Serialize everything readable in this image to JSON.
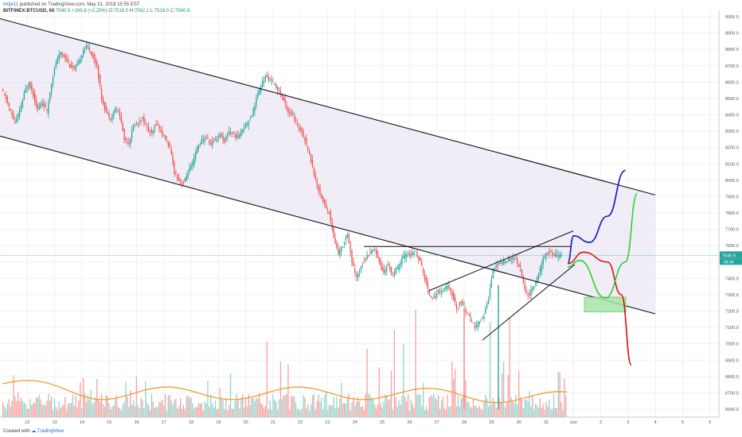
{
  "header": {
    "author": "lmtje11",
    "published": "published on TradingView.com, May 31, 2018 15:55 EST",
    "symbol": "BITFINEX:BTCUSD, 60",
    "last": "7540.9",
    "change": "+165.8 (+2.25%)",
    "o_label": "O:",
    "o": "7518.0",
    "h_label": "H:",
    "h": "7562.1",
    "l_label": "L:",
    "l": "7518.0",
    "c_label": "C:",
    "c": "7540.9"
  },
  "footer": {
    "created_with": "Created with",
    "brand": "TradingView"
  },
  "colors": {
    "up": "#26a69a",
    "down": "#ef5350",
    "channel_fill": "#ece9f5",
    "ma": "#f39c33",
    "blue_path": "#1111cc",
    "red_path": "#dd1111",
    "green_path": "#33cc33",
    "target_box": "#a8e6a8",
    "price_line": "#26a69a"
  },
  "chart_data": {
    "type": "candlestick",
    "y_ticks": [
      "9000.0",
      "8900.0",
      "8800.0",
      "8700.0",
      "8600.0",
      "8500.0",
      "8400.0",
      "8300.0",
      "8200.0",
      "8100.0",
      "8000.0",
      "7900.0",
      "7800.0",
      "7700.0",
      "7600.0",
      "7500.0",
      "7400.0",
      "7300.0",
      "7200.0",
      "7100.0",
      "7000.0",
      "6900.0",
      "6800.0",
      "6700.0",
      "6600.0"
    ],
    "x_ticks": [
      "12",
      "13",
      "14",
      "15",
      "16",
      "17",
      "18",
      "19",
      "20",
      "21",
      "22",
      "23",
      "24",
      "25",
      "26",
      "27",
      "28",
      "29",
      "30",
      "31",
      "Jun",
      "2",
      "3",
      "4",
      "5",
      "6"
    ],
    "price_label": "7540.9",
    "price_label2": "04:44",
    "close_path": [
      8550,
      8500,
      8420,
      8350,
      8420,
      8530,
      8600,
      8520,
      8430,
      8480,
      8420,
      8600,
      8720,
      8780,
      8750,
      8700,
      8680,
      8720,
      8800,
      8820,
      8760,
      8700,
      8500,
      8420,
      8380,
      8440,
      8400,
      8250,
      8230,
      8330,
      8350,
      8380,
      8320,
      8280,
      8350,
      8300,
      8250,
      8200,
      8050,
      8000,
      7980,
      8050,
      8100,
      8200,
      8240,
      8260,
      8220,
      8250,
      8280,
      8240,
      8300,
      8280,
      8260,
      8320,
      8350,
      8400,
      8500,
      8580,
      8630,
      8620,
      8580,
      8550,
      8490,
      8420,
      8400,
      8330,
      8300,
      8220,
      8120,
      8000,
      7920,
      7850,
      7800,
      7650,
      7550,
      7600,
      7680,
      7500,
      7400,
      7480,
      7520,
      7560,
      7580,
      7500,
      7440,
      7480,
      7420,
      7460,
      7520,
      7550,
      7540,
      7560,
      7500,
      7400,
      7300,
      7280,
      7320,
      7330,
      7350,
      7300,
      7220,
      7260,
      7200,
      7150,
      7100,
      7130,
      7180,
      7280,
      7460,
      7480,
      7500,
      7510,
      7520,
      7520,
      7460,
      7320,
      7300,
      7360,
      7420,
      7520,
      7560,
      7550,
      7540,
      7540
    ],
    "channel": {
      "upper": [
        {
          "x": "11",
          "y": 8988
        },
        {
          "x": "Jun 4",
          "y": 7910
        }
      ],
      "lower": [
        {
          "x": "11",
          "y": 8270
        },
        {
          "x": "Jun 4",
          "y": 7183
        }
      ]
    },
    "horizontal_line": {
      "from": "24",
      "to": "31",
      "y": 7595
    },
    "wedge": {
      "upper": [
        {
          "x": "27",
          "y": 7325
        },
        {
          "x": "31.6",
          "y": 7690
        }
      ],
      "lower": [
        {
          "x": "28.7",
          "y": 7022
        },
        {
          "x": "31.6",
          "y": 7485
        }
      ]
    },
    "projection_paths": [
      {
        "color": "blue",
        "points": [
          [
            7490,
            0
          ],
          [
            7660,
            0.15
          ],
          [
            7620,
            0.55
          ],
          [
            7780,
            1.0
          ],
          [
            8060,
            1.45
          ]
        ]
      },
      {
        "color": "red",
        "points": [
          [
            7490,
            0
          ],
          [
            7560,
            0.4
          ],
          [
            7500,
            1.0
          ],
          [
            7300,
            1.35
          ],
          [
            6870,
            1.6
          ]
        ]
      },
      {
        "color": "green",
        "points": [
          [
            7470,
            0
          ],
          [
            7510,
            0.3
          ],
          [
            7280,
            0.95
          ],
          [
            7500,
            1.45
          ],
          [
            7920,
            1.75
          ]
        ]
      }
    ],
    "target_zone": {
      "y_low": 7195,
      "y_high": 7285
    }
  }
}
